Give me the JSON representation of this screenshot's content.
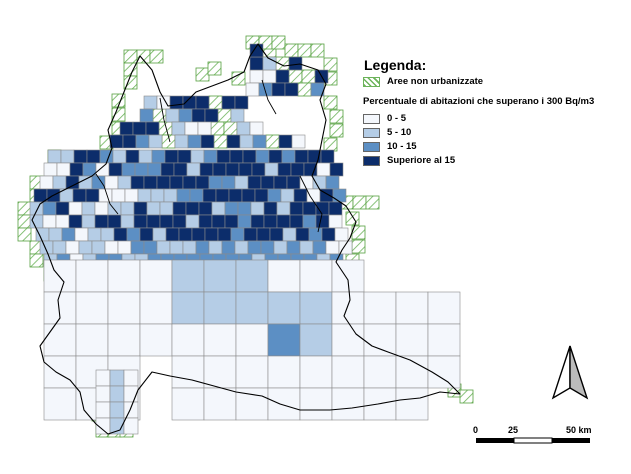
{
  "legend": {
    "title": "Legenda:",
    "non_urban_label": "Aree non urbanizzate",
    "subtitle": "Percentuale di abitazioni che superano i 300 Bq/m3",
    "classes": [
      {
        "label": "0 - 5",
        "color": "#f4f7fc"
      },
      {
        "label": "5 - 10",
        "color": "#b5cde6"
      },
      {
        "label": "10 - 15",
        "color": "#5c8fc4"
      },
      {
        "label": "Superiore al 15",
        "color": "#0c2d6b"
      }
    ]
  },
  "colors": {
    "hatch_line": "#6cb35a",
    "grid_stroke": "#8a8a8a",
    "boundary": "#000000",
    "sea": "#ffffff"
  },
  "scale_bar": {
    "labels": [
      "0",
      "25",
      "50 km"
    ]
  },
  "north_arrow": {
    "icon": "north-arrow-icon"
  }
}
